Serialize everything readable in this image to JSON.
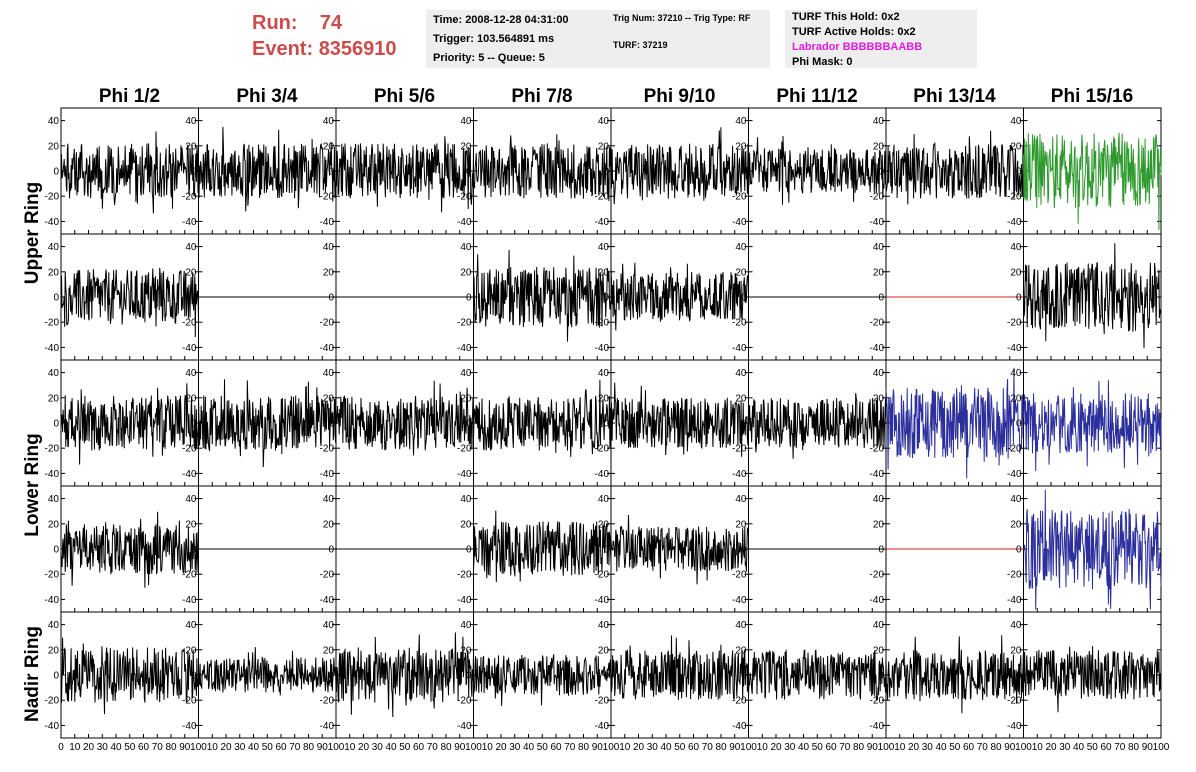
{
  "header": {
    "run_label": "Run:",
    "run_value": "74",
    "event_label": "Event:",
    "event_value": "8356910"
  },
  "info_box_1": {
    "time": "Time: 2008-12-28 04:31:00",
    "trigger": "Trigger: 103.564891 ms",
    "priority": "Priority: 5 -- Queue: 5"
  },
  "info_box_2": {
    "trig_line": "Trig Num: 37210 -- Trig Type: RF",
    "turf_line": "TURF: 37219"
  },
  "info_box_3": {
    "this_hold": "TURF This Hold: 0x2",
    "active_holds": "TURF Active Holds: 0x2",
    "labrador": "Labrador BBBBBBAABB",
    "phi_mask": "Phi Mask: 0"
  },
  "columns": [
    "Phi 1/2",
    "Phi 3/4",
    "Phi 5/6",
    "Phi 7/8",
    "Phi 9/10",
    "Phi 11/12",
    "Phi 13/14",
    "Phi 15/16"
  ],
  "rows": [
    "Upper Ring",
    "Lower Ring",
    "Nadir Ring"
  ],
  "colors": {
    "trace_default": "#000000",
    "trace_green": "#2e9a2e",
    "trace_blue": "#2b2f9c",
    "trace_red": "#cc2222",
    "run_text": "#cc4c4c",
    "labrador": "#e01ce0"
  },
  "chart_data": {
    "type": "line",
    "xlim": [
      0,
      100
    ],
    "ylim": [
      -50,
      50
    ],
    "x_ticks": [
      0,
      10,
      20,
      30,
      40,
      50,
      60,
      70,
      80,
      90,
      100
    ],
    "y_ticks": [
      -40,
      -20,
      0,
      20,
      40
    ],
    "x_tick_labels": [
      "0",
      "10",
      "20",
      "30",
      "40",
      "50",
      "60",
      "70",
      "80",
      "90",
      "100"
    ],
    "y_tick_labels": [
      "-40",
      "-20",
      "0",
      "20",
      "40"
    ],
    "grid": false,
    "panels": [
      {
        "row": 0,
        "col": 0,
        "amp": 22,
        "flat": false,
        "color": "trace_default"
      },
      {
        "row": 0,
        "col": 1,
        "amp": 22,
        "flat": false,
        "color": "trace_default"
      },
      {
        "row": 0,
        "col": 2,
        "amp": 22,
        "flat": false,
        "color": "trace_default"
      },
      {
        "row": 0,
        "col": 3,
        "amp": 22,
        "flat": false,
        "color": "trace_default"
      },
      {
        "row": 0,
        "col": 4,
        "amp": 22,
        "flat": false,
        "color": "trace_default"
      },
      {
        "row": 0,
        "col": 5,
        "amp": 18,
        "flat": false,
        "color": "trace_default"
      },
      {
        "row": 0,
        "col": 6,
        "amp": 22,
        "flat": false,
        "color": "trace_default"
      },
      {
        "row": 0,
        "col": 7,
        "amp": 30,
        "flat": false,
        "color": "trace_green"
      },
      {
        "row": 1,
        "col": 0,
        "amp": 22,
        "flat": false,
        "color": "trace_default"
      },
      {
        "row": 1,
        "col": 1,
        "amp": 0,
        "flat": true,
        "color": "trace_default"
      },
      {
        "row": 1,
        "col": 2,
        "amp": 0,
        "flat": true,
        "color": "trace_default"
      },
      {
        "row": 1,
        "col": 3,
        "amp": 24,
        "flat": false,
        "color": "trace_default"
      },
      {
        "row": 1,
        "col": 4,
        "amp": 20,
        "flat": false,
        "color": "trace_default"
      },
      {
        "row": 1,
        "col": 5,
        "amp": 0,
        "flat": true,
        "color": "trace_default"
      },
      {
        "row": 1,
        "col": 6,
        "amp": 0,
        "flat": true,
        "color": "trace_red"
      },
      {
        "row": 1,
        "col": 7,
        "amp": 28,
        "flat": false,
        "color": "trace_default"
      },
      {
        "row": 2,
        "col": 0,
        "amp": 22,
        "flat": false,
        "color": "trace_default"
      },
      {
        "row": 2,
        "col": 1,
        "amp": 22,
        "flat": false,
        "color": "trace_default"
      },
      {
        "row": 2,
        "col": 2,
        "amp": 22,
        "flat": false,
        "color": "trace_default"
      },
      {
        "row": 2,
        "col": 3,
        "amp": 22,
        "flat": false,
        "color": "trace_default"
      },
      {
        "row": 2,
        "col": 4,
        "amp": 20,
        "flat": false,
        "color": "trace_default"
      },
      {
        "row": 2,
        "col": 5,
        "amp": 20,
        "flat": false,
        "color": "trace_default"
      },
      {
        "row": 2,
        "col": 6,
        "amp": 28,
        "flat": false,
        "color": "trace_blue"
      },
      {
        "row": 2,
        "col": 7,
        "amp": 24,
        "flat": false,
        "color": "trace_blue"
      },
      {
        "row": 3,
        "col": 0,
        "amp": 20,
        "flat": false,
        "color": "trace_default"
      },
      {
        "row": 3,
        "col": 1,
        "amp": 0,
        "flat": true,
        "color": "trace_default"
      },
      {
        "row": 3,
        "col": 2,
        "amp": 0,
        "flat": true,
        "color": "trace_default"
      },
      {
        "row": 3,
        "col": 3,
        "amp": 22,
        "flat": false,
        "color": "trace_default"
      },
      {
        "row": 3,
        "col": 4,
        "amp": 18,
        "flat": false,
        "color": "trace_default"
      },
      {
        "row": 3,
        "col": 5,
        "amp": 0,
        "flat": true,
        "color": "trace_default"
      },
      {
        "row": 3,
        "col": 6,
        "amp": 0,
        "flat": true,
        "color": "trace_red"
      },
      {
        "row": 3,
        "col": 7,
        "amp": 32,
        "flat": false,
        "color": "trace_blue"
      },
      {
        "row": 4,
        "col": 0,
        "amp": 22,
        "flat": false,
        "color": "trace_default"
      },
      {
        "row": 4,
        "col": 1,
        "amp": 14,
        "flat": false,
        "color": "trace_default"
      },
      {
        "row": 4,
        "col": 2,
        "amp": 22,
        "flat": false,
        "color": "trace_default"
      },
      {
        "row": 4,
        "col": 3,
        "amp": 16,
        "flat": false,
        "color": "trace_default"
      },
      {
        "row": 4,
        "col": 4,
        "amp": 20,
        "flat": false,
        "color": "trace_default"
      },
      {
        "row": 4,
        "col": 5,
        "amp": 20,
        "flat": false,
        "color": "trace_default"
      },
      {
        "row": 4,
        "col": 6,
        "amp": 20,
        "flat": false,
        "color": "trace_default"
      },
      {
        "row": 4,
        "col": 7,
        "amp": 20,
        "flat": false,
        "color": "trace_default"
      }
    ]
  }
}
